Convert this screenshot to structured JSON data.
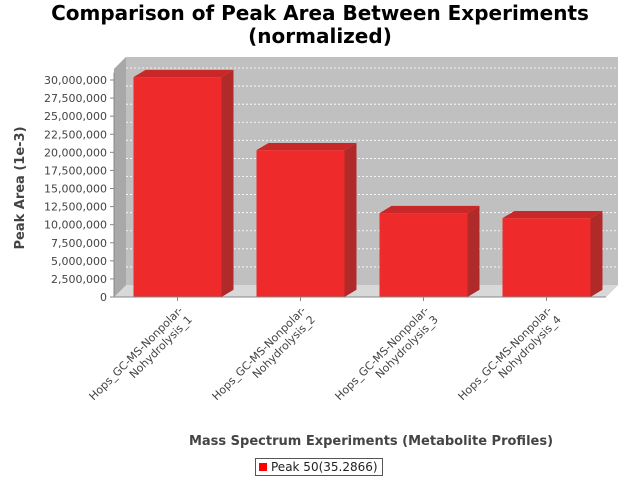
{
  "chart_data": {
    "type": "bar",
    "title_line1": "Comparison of Peak Area Between Experiments",
    "title_line2": "(normalized)",
    "xlabel": "Mass Spectrum Experiments (Metabolite Profiles)",
    "ylabel": "Peak Area (1e-3)",
    "categories": [
      [
        "Hops_GC-MS-Nonpolar-",
        "Nohydrolysis_1"
      ],
      [
        "Hops_GC-MS-Nonpolar-",
        "Nohydrolysis_2"
      ],
      [
        "Hops_GC-MS-Nonpolar-",
        "Nohydrolysis_3"
      ],
      [
        "Hops_GC-MS-Nonpolar-",
        "Nohydrolysis_4"
      ]
    ],
    "series": [
      {
        "name": "Peak 50(35.2866)",
        "values": [
          30400000,
          20300000,
          11600000,
          10900000
        ]
      }
    ],
    "ylim": [
      0,
      31000000
    ],
    "yticks": [
      0,
      2500000,
      5000000,
      7500000,
      10000000,
      12500000,
      15000000,
      17500000,
      20000000,
      22500000,
      25000000,
      27500000,
      30000000
    ],
    "ytick_labels": [
      "0",
      "2,500,000",
      "5,000,000",
      "7,500,000",
      "10,000,000",
      "12,500,000",
      "15,000,000",
      "17,500,000",
      "20,000,000",
      "22,500,000",
      "25,000,000",
      "27,500,000",
      "30,000,000"
    ],
    "grid": true,
    "legend_position": "bottom",
    "colors": {
      "bar_front": "#ee2a2a",
      "bar_side": "#b02a2a",
      "bar_top": "#c82828",
      "plot_bg": "#c0c0c0",
      "plot_wall": "#a8a8a8",
      "legend_swatch": "#ff0000"
    }
  }
}
